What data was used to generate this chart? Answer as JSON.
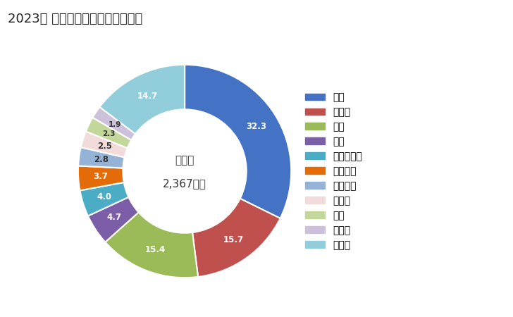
{
  "title": "2023年 輸出相手国のシェア（％）",
  "center_label_line1": "総　額",
  "center_label_line2": "2,367億円",
  "labels": [
    "米国",
    "ドイツ",
    "中国",
    "タイ",
    "ポーランド",
    "イタリア",
    "フランス",
    "カナダ",
    "台湾",
    "チェコ",
    "その他"
  ],
  "values": [
    32.3,
    15.7,
    15.4,
    4.7,
    4.0,
    3.7,
    2.8,
    2.5,
    2.3,
    1.9,
    14.7
  ],
  "colors": [
    "#4472C4",
    "#C0504D",
    "#9BBB59",
    "#7B5EA7",
    "#4BACC6",
    "#E36C09",
    "#95B3D7",
    "#F2DCDB",
    "#C4D79B",
    "#CCC0DA",
    "#92CDDC"
  ],
  "background_color": "#FFFFFF",
  "title_fontsize": 13,
  "legend_fontsize": 10,
  "label_text_colors": [
    "white",
    "white",
    "white",
    "white",
    "white",
    "white",
    "#333333",
    "#333333",
    "#333333",
    "#333333",
    "white"
  ]
}
